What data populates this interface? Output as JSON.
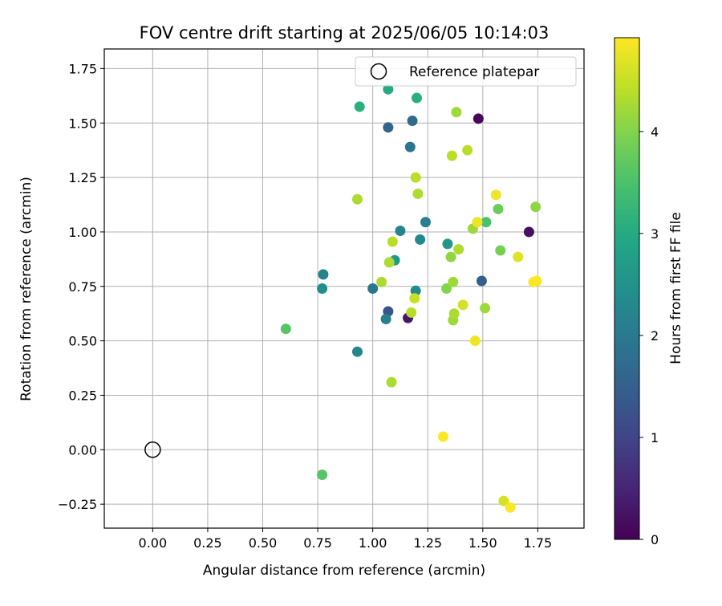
{
  "chart_data": {
    "type": "scatter",
    "title": "FOV centre drift starting at 2025/06/05 10:14:03",
    "xlabel": "Angular distance from reference (arcmin)",
    "ylabel": "Rotation from reference (arcmin)",
    "xlim": [
      -0.22,
      1.96
    ],
    "ylim": [
      -0.36,
      1.84
    ],
    "xticks": [
      0.0,
      0.25,
      0.5,
      0.75,
      1.0,
      1.25,
      1.5,
      1.75
    ],
    "xtick_labels": [
      "0.00",
      "0.25",
      "0.50",
      "0.75",
      "1.00",
      "1.25",
      "1.50",
      "1.75"
    ],
    "yticks": [
      -0.25,
      0.0,
      0.25,
      0.5,
      0.75,
      1.0,
      1.25,
      1.5,
      1.75
    ],
    "ytick_labels": [
      "−0.25",
      "0.00",
      "0.25",
      "0.50",
      "0.75",
      "1.00",
      "1.25",
      "1.50",
      "1.75"
    ],
    "grid": true,
    "legend": {
      "placement": "top-right",
      "entries": [
        "Reference platepar"
      ]
    },
    "reference_point": {
      "x": 0.0,
      "y": 0.0
    },
    "colorbar": {
      "label": "Hours from first FF file",
      "min": 0,
      "max": 4.92,
      "ticks": [
        0,
        1,
        2,
        3,
        4
      ],
      "tick_labels": [
        "0",
        "1",
        "2",
        "3",
        "4"
      ],
      "colormap": "viridis"
    },
    "points": [
      {
        "x": 1.48,
        "y": 1.52,
        "hours": 0.1
      },
      {
        "x": 1.71,
        "y": 1.0,
        "hours": 0.2
      },
      {
        "x": 1.16,
        "y": 0.605,
        "hours": 0.3
      },
      {
        "x": 1.07,
        "y": 0.635,
        "hours": 1.3
      },
      {
        "x": 1.495,
        "y": 0.775,
        "hours": 1.5
      },
      {
        "x": 1.07,
        "y": 1.48,
        "hours": 1.6
      },
      {
        "x": 1.18,
        "y": 1.51,
        "hours": 1.7
      },
      {
        "x": 1.17,
        "y": 1.39,
        "hours": 1.9
      },
      {
        "x": 1.0,
        "y": 0.74,
        "hours": 1.9
      },
      {
        "x": 1.06,
        "y": 0.6,
        "hours": 2.1
      },
      {
        "x": 1.24,
        "y": 1.045,
        "hours": 2.1
      },
      {
        "x": 0.775,
        "y": 0.805,
        "hours": 2.2
      },
      {
        "x": 0.93,
        "y": 0.45,
        "hours": 2.2
      },
      {
        "x": 1.125,
        "y": 1.005,
        "hours": 2.2
      },
      {
        "x": 1.215,
        "y": 0.965,
        "hours": 2.3
      },
      {
        "x": 1.195,
        "y": 0.73,
        "hours": 2.3
      },
      {
        "x": 0.77,
        "y": 0.74,
        "hours": 2.4
      },
      {
        "x": 1.1,
        "y": 0.87,
        "hours": 2.6
      },
      {
        "x": 1.34,
        "y": 0.945,
        "hours": 2.6
      },
      {
        "x": 1.07,
        "y": 1.655,
        "hours": 3.0
      },
      {
        "x": 1.2,
        "y": 1.615,
        "hours": 3.1
      },
      {
        "x": 0.94,
        "y": 1.575,
        "hours": 3.1
      },
      {
        "x": 1.515,
        "y": 1.045,
        "hours": 3.5
      },
      {
        "x": 0.605,
        "y": 0.555,
        "hours": 3.6
      },
      {
        "x": 0.77,
        "y": -0.115,
        "hours": 3.6
      },
      {
        "x": 1.57,
        "y": 1.105,
        "hours": 3.8
      },
      {
        "x": 1.58,
        "y": 0.915,
        "hours": 3.9
      },
      {
        "x": 1.335,
        "y": 0.74,
        "hours": 4.0
      },
      {
        "x": 1.355,
        "y": 0.885,
        "hours": 4.1
      },
      {
        "x": 1.74,
        "y": 1.115,
        "hours": 4.1
      },
      {
        "x": 1.365,
        "y": 0.595,
        "hours": 4.2
      },
      {
        "x": 1.365,
        "y": 0.77,
        "hours": 4.2
      },
      {
        "x": 1.51,
        "y": 0.65,
        "hours": 4.2
      },
      {
        "x": 1.455,
        "y": 1.015,
        "hours": 4.2
      },
      {
        "x": 1.38,
        "y": 1.55,
        "hours": 4.2
      },
      {
        "x": 1.075,
        "y": 0.86,
        "hours": 4.3
      },
      {
        "x": 1.085,
        "y": 0.31,
        "hours": 4.3
      },
      {
        "x": 1.04,
        "y": 0.77,
        "hours": 4.3
      },
      {
        "x": 1.37,
        "y": 0.625,
        "hours": 4.3
      },
      {
        "x": 1.39,
        "y": 0.92,
        "hours": 4.3
      },
      {
        "x": 0.93,
        "y": 1.15,
        "hours": 4.3
      },
      {
        "x": 1.205,
        "y": 1.175,
        "hours": 4.3
      },
      {
        "x": 1.175,
        "y": 0.63,
        "hours": 4.4
      },
      {
        "x": 1.09,
        "y": 0.955,
        "hours": 4.4
      },
      {
        "x": 1.195,
        "y": 1.25,
        "hours": 4.4
      },
      {
        "x": 1.36,
        "y": 1.35,
        "hours": 4.4
      },
      {
        "x": 1.43,
        "y": 1.375,
        "hours": 4.4
      },
      {
        "x": 1.19,
        "y": 0.695,
        "hours": 4.5
      },
      {
        "x": 1.41,
        "y": 0.665,
        "hours": 4.6
      },
      {
        "x": 1.595,
        "y": -0.235,
        "hours": 4.6
      },
      {
        "x": 1.66,
        "y": 0.885,
        "hours": 4.7
      },
      {
        "x": 1.475,
        "y": 1.045,
        "hours": 4.8
      },
      {
        "x": 1.465,
        "y": 0.5,
        "hours": 4.8
      },
      {
        "x": 1.56,
        "y": 1.17,
        "hours": 4.8
      },
      {
        "x": 1.73,
        "y": 0.77,
        "hours": 4.9
      },
      {
        "x": 1.745,
        "y": 0.775,
        "hours": 4.9
      },
      {
        "x": 1.32,
        "y": 0.06,
        "hours": 4.9
      },
      {
        "x": 1.625,
        "y": -0.265,
        "hours": 4.9
      }
    ]
  }
}
